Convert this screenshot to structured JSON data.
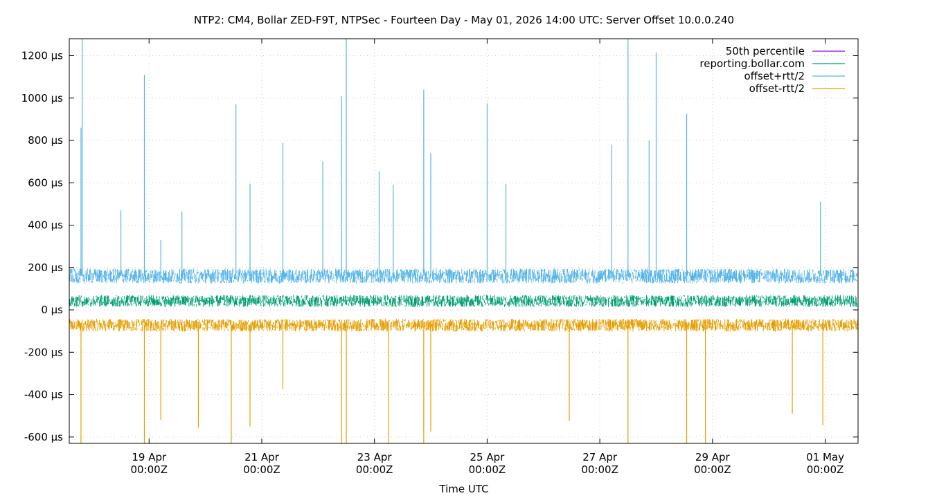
{
  "chart_data": {
    "type": "line",
    "title": "NTP2: CM4, Bollar ZED-F9T, NTPSec - Fourteen Day - May 01, 2026 14:00 UTC: Server Offset 10.0.0.240",
    "xlabel": "Time UTC",
    "ylabel": "",
    "y_unit": "µs",
    "ylim": [
      -630,
      1280
    ],
    "xlim": [
      "2026-04-17T14:00Z",
      "2026-05-01T14:00Z"
    ],
    "grid": true,
    "legend_position": "top-right",
    "y_ticks": [
      {
        "value": 1200,
        "label": "1200 µs"
      },
      {
        "value": 1000,
        "label": "1000 µs"
      },
      {
        "value": 800,
        "label": "800 µs"
      },
      {
        "value": 600,
        "label": "600 µs"
      },
      {
        "value": 400,
        "label": "400 µs"
      },
      {
        "value": 200,
        "label": "200 µs"
      },
      {
        "value": 0,
        "label": "0 µs"
      },
      {
        "value": -200,
        "label": "-200 µs"
      },
      {
        "value": -400,
        "label": "-400 µs"
      },
      {
        "value": -600,
        "label": "-600 µs"
      }
    ],
    "x_ticks": [
      {
        "value": "2026-04-19T00:00Z",
        "line1": "19 Apr",
        "line2": "00:00Z"
      },
      {
        "value": "2026-04-21T00:00Z",
        "line1": "21 Apr",
        "line2": "00:00Z"
      },
      {
        "value": "2026-04-23T00:00Z",
        "line1": "23 Apr",
        "line2": "00:00Z"
      },
      {
        "value": "2026-04-25T00:00Z",
        "line1": "25 Apr",
        "line2": "00:00Z"
      },
      {
        "value": "2026-04-27T00:00Z",
        "line1": "27 Apr",
        "line2": "00:00Z"
      },
      {
        "value": "2026-04-29T00:00Z",
        "line1": "29 Apr",
        "line2": "00:00Z"
      },
      {
        "value": "2026-05-01T00:00Z",
        "line1": "01 May",
        "line2": "00:00Z"
      }
    ],
    "series": [
      {
        "name": "50th percentile",
        "color": "#9400d3",
        "style": "line",
        "typical_value": 40
      },
      {
        "name": "reporting.bollar.com",
        "color": "#009e73",
        "style": "noisy-band",
        "center": 42,
        "spread": 28
      },
      {
        "name": "offset+rtt/2",
        "color": "#56b4e9",
        "style": "noisy-band",
        "center": 160,
        "spread": 35,
        "spikes": [
          {
            "x": "2026-04-17T19:00Z",
            "y": 860
          },
          {
            "x": "2026-04-17T19:30Z",
            "y": 1280
          },
          {
            "x": "2026-04-18T12:00Z",
            "y": 470
          },
          {
            "x": "2026-04-18T22:00Z",
            "y": 1110
          },
          {
            "x": "2026-04-19T05:00Z",
            "y": 330
          },
          {
            "x": "2026-04-19T14:00Z",
            "y": 465
          },
          {
            "x": "2026-04-20T19:00Z",
            "y": 595
          },
          {
            "x": "2026-04-21T09:00Z",
            "y": 790
          },
          {
            "x": "2026-04-20T13:00Z",
            "y": 970
          },
          {
            "x": "2026-04-22T02:00Z",
            "y": 700
          },
          {
            "x": "2026-04-22T10:00Z",
            "y": 1010
          },
          {
            "x": "2026-04-22T12:00Z",
            "y": 1280
          },
          {
            "x": "2026-04-23T02:00Z",
            "y": 655
          },
          {
            "x": "2026-04-23T08:00Z",
            "y": 590
          },
          {
            "x": "2026-04-23T21:00Z",
            "y": 1040
          },
          {
            "x": "2026-04-24T00:00Z",
            "y": 740
          },
          {
            "x": "2026-04-25T00:00Z",
            "y": 975
          },
          {
            "x": "2026-04-25T08:00Z",
            "y": 595
          },
          {
            "x": "2026-04-27T05:00Z",
            "y": 780
          },
          {
            "x": "2026-04-27T12:00Z",
            "y": 1280
          },
          {
            "x": "2026-04-27T21:00Z",
            "y": 800
          },
          {
            "x": "2026-04-28T00:00Z",
            "y": 1215
          },
          {
            "x": "2026-04-28T13:00Z",
            "y": 925
          },
          {
            "x": "2026-04-30T22:00Z",
            "y": 510
          }
        ]
      },
      {
        "name": "offset-rtt/2",
        "color": "#e69f00",
        "style": "noisy-band",
        "center": -72,
        "spread": 30,
        "spikes": [
          {
            "x": "2026-04-17T19:00Z",
            "y": -630
          },
          {
            "x": "2026-04-18T22:00Z",
            "y": -630
          },
          {
            "x": "2026-04-19T05:00Z",
            "y": -520
          },
          {
            "x": "2026-04-19T21:00Z",
            "y": -555
          },
          {
            "x": "2026-04-20T11:00Z",
            "y": -630
          },
          {
            "x": "2026-04-20T19:00Z",
            "y": -550
          },
          {
            "x": "2026-04-21T09:00Z",
            "y": -375
          },
          {
            "x": "2026-04-22T10:00Z",
            "y": -630
          },
          {
            "x": "2026-04-22T12:00Z",
            "y": -630
          },
          {
            "x": "2026-04-23T06:00Z",
            "y": -630
          },
          {
            "x": "2026-04-23T21:00Z",
            "y": -630
          },
          {
            "x": "2026-04-24T00:00Z",
            "y": -575
          },
          {
            "x": "2026-04-26T11:00Z",
            "y": -525
          },
          {
            "x": "2026-04-27T12:00Z",
            "y": -630
          },
          {
            "x": "2026-04-28T13:00Z",
            "y": -630
          },
          {
            "x": "2026-04-28T21:00Z",
            "y": -630
          },
          {
            "x": "2026-04-30T10:00Z",
            "y": -490
          },
          {
            "x": "2026-04-30T23:00Z",
            "y": -545
          }
        ]
      }
    ]
  }
}
